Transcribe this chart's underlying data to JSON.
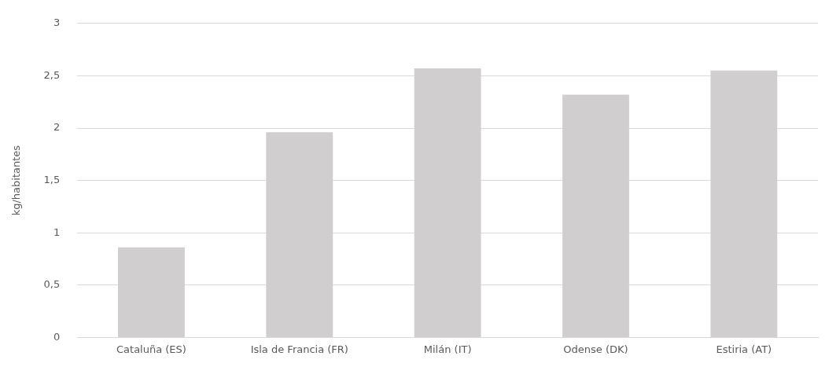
{
  "chart_data": {
    "type": "bar",
    "ylabel": "kg/habitantes",
    "categories": [
      "Cataluña (ES)",
      "Isla de Francia (FR)",
      "Milán (IT)",
      "Odense (DK)",
      "Estiria (AT)"
    ],
    "values": [
      0.86,
      1.96,
      2.57,
      2.32,
      2.55
    ],
    "color": "#d0cece",
    "ylim": [
      0,
      3
    ],
    "yticks": [
      0,
      {
        "value": 0.5,
        "label": "0,5"
      },
      1,
      {
        "value": 1.5,
        "label": "1,5"
      },
      2,
      {
        "value": 2.5,
        "label": "2,5"
      },
      3
    ],
    "grid": "y",
    "legend": false
  }
}
